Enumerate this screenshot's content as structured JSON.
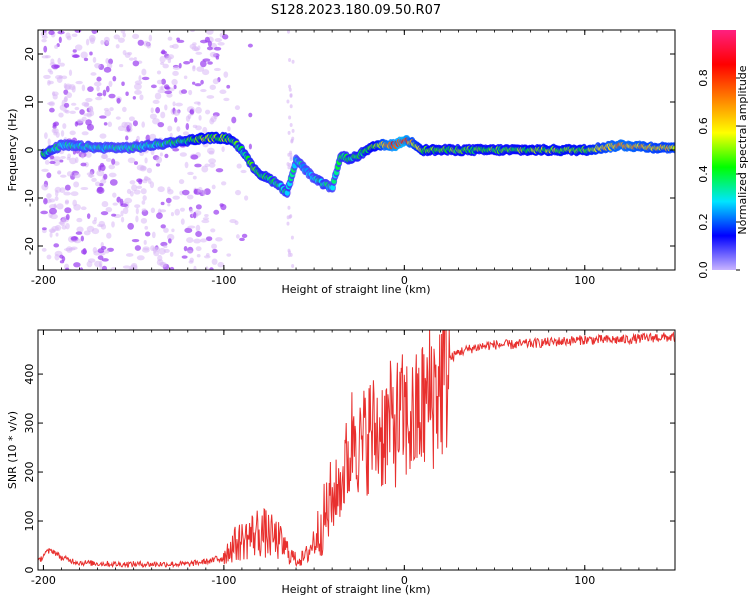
{
  "title": "S128.2023.180.09.50.R07",
  "colors": {
    "snr_line": "#e8302e",
    "frame": "#000000",
    "scatter_light": "#d9b8f5",
    "scatter_dark": "#9a3cf0"
  },
  "chart_data": [
    {
      "type": "heatmap",
      "name": "spectrogram",
      "xlabel": "Height of straight line (km)",
      "ylabel": "Frequency (Hz)",
      "xlim": [
        -203,
        150
      ],
      "ylim": [
        -25,
        25
      ],
      "xticks": [
        -200,
        -100,
        0,
        100
      ],
      "xtick_labels": [
        "-200",
        "-100",
        "0",
        "100"
      ],
      "yticks": [
        -20,
        -10,
        0,
        10,
        20
      ],
      "ytick_labels": [
        "-20",
        "-10",
        "0",
        "10",
        "20"
      ],
      "ridge": {
        "x": [
          -200,
          -190,
          -170,
          -150,
          -130,
          -110,
          -100,
          -95,
          -90,
          -85,
          -80,
          -75,
          -70,
          -65,
          -60,
          -55,
          -50,
          -45,
          -40,
          -35,
          -30,
          -25,
          -20,
          -15,
          -10,
          -5,
          0,
          5,
          10,
          20,
          40,
          60,
          80,
          100,
          120,
          140,
          150
        ],
        "freq": [
          -1,
          1,
          0.5,
          0.5,
          1.5,
          2.5,
          2.5,
          2,
          0,
          -3,
          -5,
          -6,
          -7,
          -9,
          -2,
          -4,
          -6,
          -7,
          -8,
          -1,
          -2,
          -1,
          0,
          1,
          1,
          1,
          2,
          1.5,
          0,
          0,
          0,
          0,
          0,
          0,
          1,
          0.5,
          0.5
        ],
        "amplitude": [
          0.4,
          0.3,
          0.3,
          0.3,
          0.35,
          0.5,
          0.5,
          0.45,
          0.4,
          0.4,
          0.4,
          0.4,
          0.35,
          0.35,
          0.3,
          0.3,
          0.3,
          0.35,
          0.3,
          0.35,
          0.4,
          0.4,
          0.45,
          0.5,
          0.7,
          0.8,
          0.85,
          0.6,
          0.5,
          0.45,
          0.45,
          0.45,
          0.5,
          0.5,
          0.7,
          0.6,
          0.6
        ]
      },
      "scatter_noise_x_range": [
        -200,
        -100
      ]
    },
    {
      "type": "colorbar",
      "name": "amplitude-colorbar",
      "label": "Normalized spectral amplitude",
      "range": [
        0,
        1
      ],
      "ticks": [
        0.0,
        0.2,
        0.4,
        0.6,
        0.8
      ],
      "tick_labels": [
        "0.0",
        "0.2",
        "0.4",
        "0.6",
        "0.8"
      ],
      "stops": [
        "#c8b4ff",
        "#0000ff",
        "#00e5ff",
        "#00ff00",
        "#ffff00",
        "#ff8000",
        "#ff0000",
        "#ff2080"
      ]
    },
    {
      "type": "line",
      "name": "snr",
      "xlabel": "Height of straight line (km)",
      "ylabel": "SNR (10 * v/v)",
      "xlim": [
        -203,
        150
      ],
      "ylim": [
        0,
        490
      ],
      "xticks": [
        -200,
        -100,
        0,
        100
      ],
      "xtick_labels": [
        "-200",
        "-100",
        "0",
        "100"
      ],
      "yticks": [
        0,
        100,
        200,
        300,
        400
      ],
      "ytick_labels": [
        "0",
        "100",
        "200",
        "300",
        "400"
      ],
      "x": [
        -203,
        -199,
        -195,
        -190,
        -180,
        -160,
        -140,
        -120,
        -105,
        -100,
        -95,
        -90,
        -85,
        -80,
        -75,
        -70,
        -65,
        -60,
        -55,
        -50,
        -45,
        -40,
        -35,
        -30,
        -27,
        -25,
        -20,
        -15,
        -10,
        -5,
        0,
        5,
        10,
        15,
        20,
        25,
        30,
        40,
        50,
        60,
        80,
        100,
        120,
        140,
        150
      ],
      "y": [
        15,
        35,
        40,
        25,
        15,
        12,
        12,
        12,
        20,
        30,
        50,
        60,
        70,
        80,
        70,
        60,
        40,
        20,
        25,
        60,
        100,
        140,
        180,
        240,
        320,
        240,
        280,
        280,
        290,
        300,
        310,
        300,
        330,
        360,
        380,
        430,
        445,
        455,
        460,
        460,
        465,
        470,
        470,
        475,
        475
      ]
    }
  ]
}
